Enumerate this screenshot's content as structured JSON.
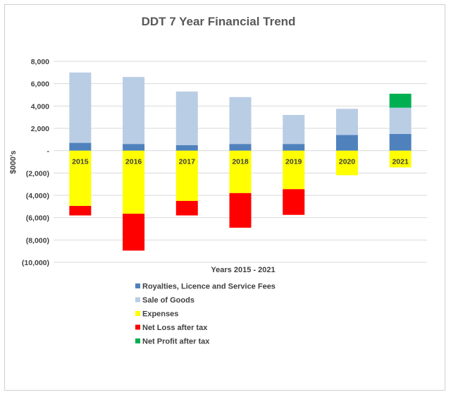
{
  "chart_data": {
    "type": "bar",
    "stacked": true,
    "title": "DDT 7 Year Financial Trend",
    "xlabel": "Years 2015 - 2021",
    "ylabel": "$000's",
    "ylim": [
      -10000,
      8000
    ],
    "yticks": [
      8000,
      6000,
      4000,
      2000,
      0,
      -2000,
      -4000,
      -6000,
      -8000,
      -10000
    ],
    "ytick_labels": [
      "8,000",
      "6,000",
      "4,000",
      "2,000",
      "-",
      "(2,000)",
      "(4,000)",
      "(6,000)",
      "(8,000)",
      "(10,000)"
    ],
    "grid": true,
    "legend_position": "bottom",
    "categories": [
      "2015",
      "2016",
      "2017",
      "2018",
      "2019",
      "2020",
      "2021"
    ],
    "series": [
      {
        "name": "Royalties, Licence and Service Fees",
        "color": "#4f81bd",
        "values": [
          700,
          600,
          500,
          600,
          600,
          1400,
          1500
        ]
      },
      {
        "name": "Sale of Goods",
        "color": "#b9cde5",
        "values": [
          6300,
          6000,
          4800,
          4200,
          2600,
          2350,
          2350
        ]
      },
      {
        "name": "Expenses",
        "color": "#ffff00",
        "values": [
          -4950,
          -5650,
          -4500,
          -3800,
          -3450,
          -2200,
          -1500
        ]
      },
      {
        "name": "Net Loss after tax",
        "color": "#ff0000",
        "values": [
          -850,
          -3300,
          -1300,
          -3100,
          -2300,
          0,
          0
        ]
      },
      {
        "name": "Net Profit after tax",
        "color": "#00b050",
        "values": [
          0,
          0,
          0,
          0,
          0,
          0,
          1250
        ]
      }
    ]
  }
}
